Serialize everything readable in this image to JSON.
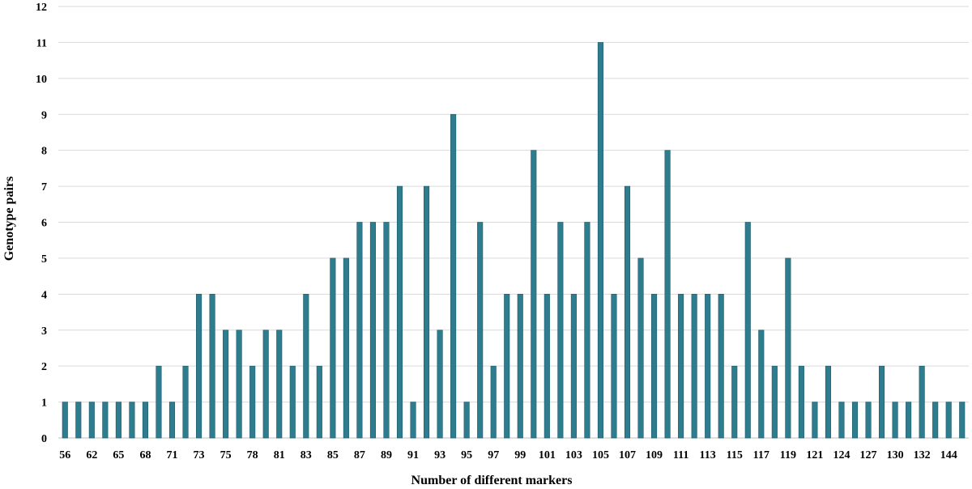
{
  "chart_data": {
    "type": "bar",
    "xlabel": "Number of different markers",
    "ylabel": "Genotype pairs",
    "ylim": [
      0,
      12
    ],
    "yticks": [
      0,
      1,
      2,
      3,
      4,
      5,
      6,
      7,
      8,
      9,
      10,
      11,
      12
    ],
    "grid": true,
    "bar_color": "#2e7d8f",
    "categories": [
      56,
      58,
      62,
      64,
      65,
      67,
      68,
      70,
      71,
      72,
      73,
      74,
      75,
      76,
      78,
      79,
      81,
      82,
      83,
      84,
      85,
      86,
      87,
      88,
      89,
      90,
      91,
      92,
      93,
      94,
      95,
      96,
      97,
      98,
      99,
      100,
      101,
      102,
      103,
      104,
      105,
      106,
      107,
      108,
      109,
      110,
      111,
      112,
      113,
      114,
      115,
      116,
      117,
      118,
      119,
      120,
      121,
      122,
      124,
      125,
      127,
      129,
      130,
      131,
      132,
      133,
      144,
      145
    ],
    "values": [
      1,
      1,
      1,
      1,
      1,
      1,
      1,
      2,
      1,
      2,
      4,
      4,
      3,
      3,
      2,
      3,
      3,
      2,
      4,
      2,
      5,
      5,
      6,
      6,
      6,
      7,
      1,
      7,
      3,
      9,
      1,
      6,
      2,
      4,
      4,
      8,
      4,
      6,
      4,
      6,
      11,
      4,
      7,
      5,
      4,
      8,
      4,
      4,
      4,
      4,
      2,
      6,
      3,
      2,
      5,
      2,
      1,
      2,
      1,
      1,
      1,
      2,
      1,
      1,
      2,
      1,
      1,
      1
    ],
    "xtick_labels": [
      "56",
      "62",
      "65",
      "68",
      "71",
      "73",
      "75",
      "78",
      "81",
      "83",
      "85",
      "87",
      "89",
      "91",
      "93",
      "95",
      "97",
      "99",
      "101",
      "103",
      "105",
      "107",
      "109",
      "111",
      "113",
      "115",
      "117",
      "119",
      "121",
      "124",
      "127",
      "130",
      "132",
      "144"
    ]
  }
}
